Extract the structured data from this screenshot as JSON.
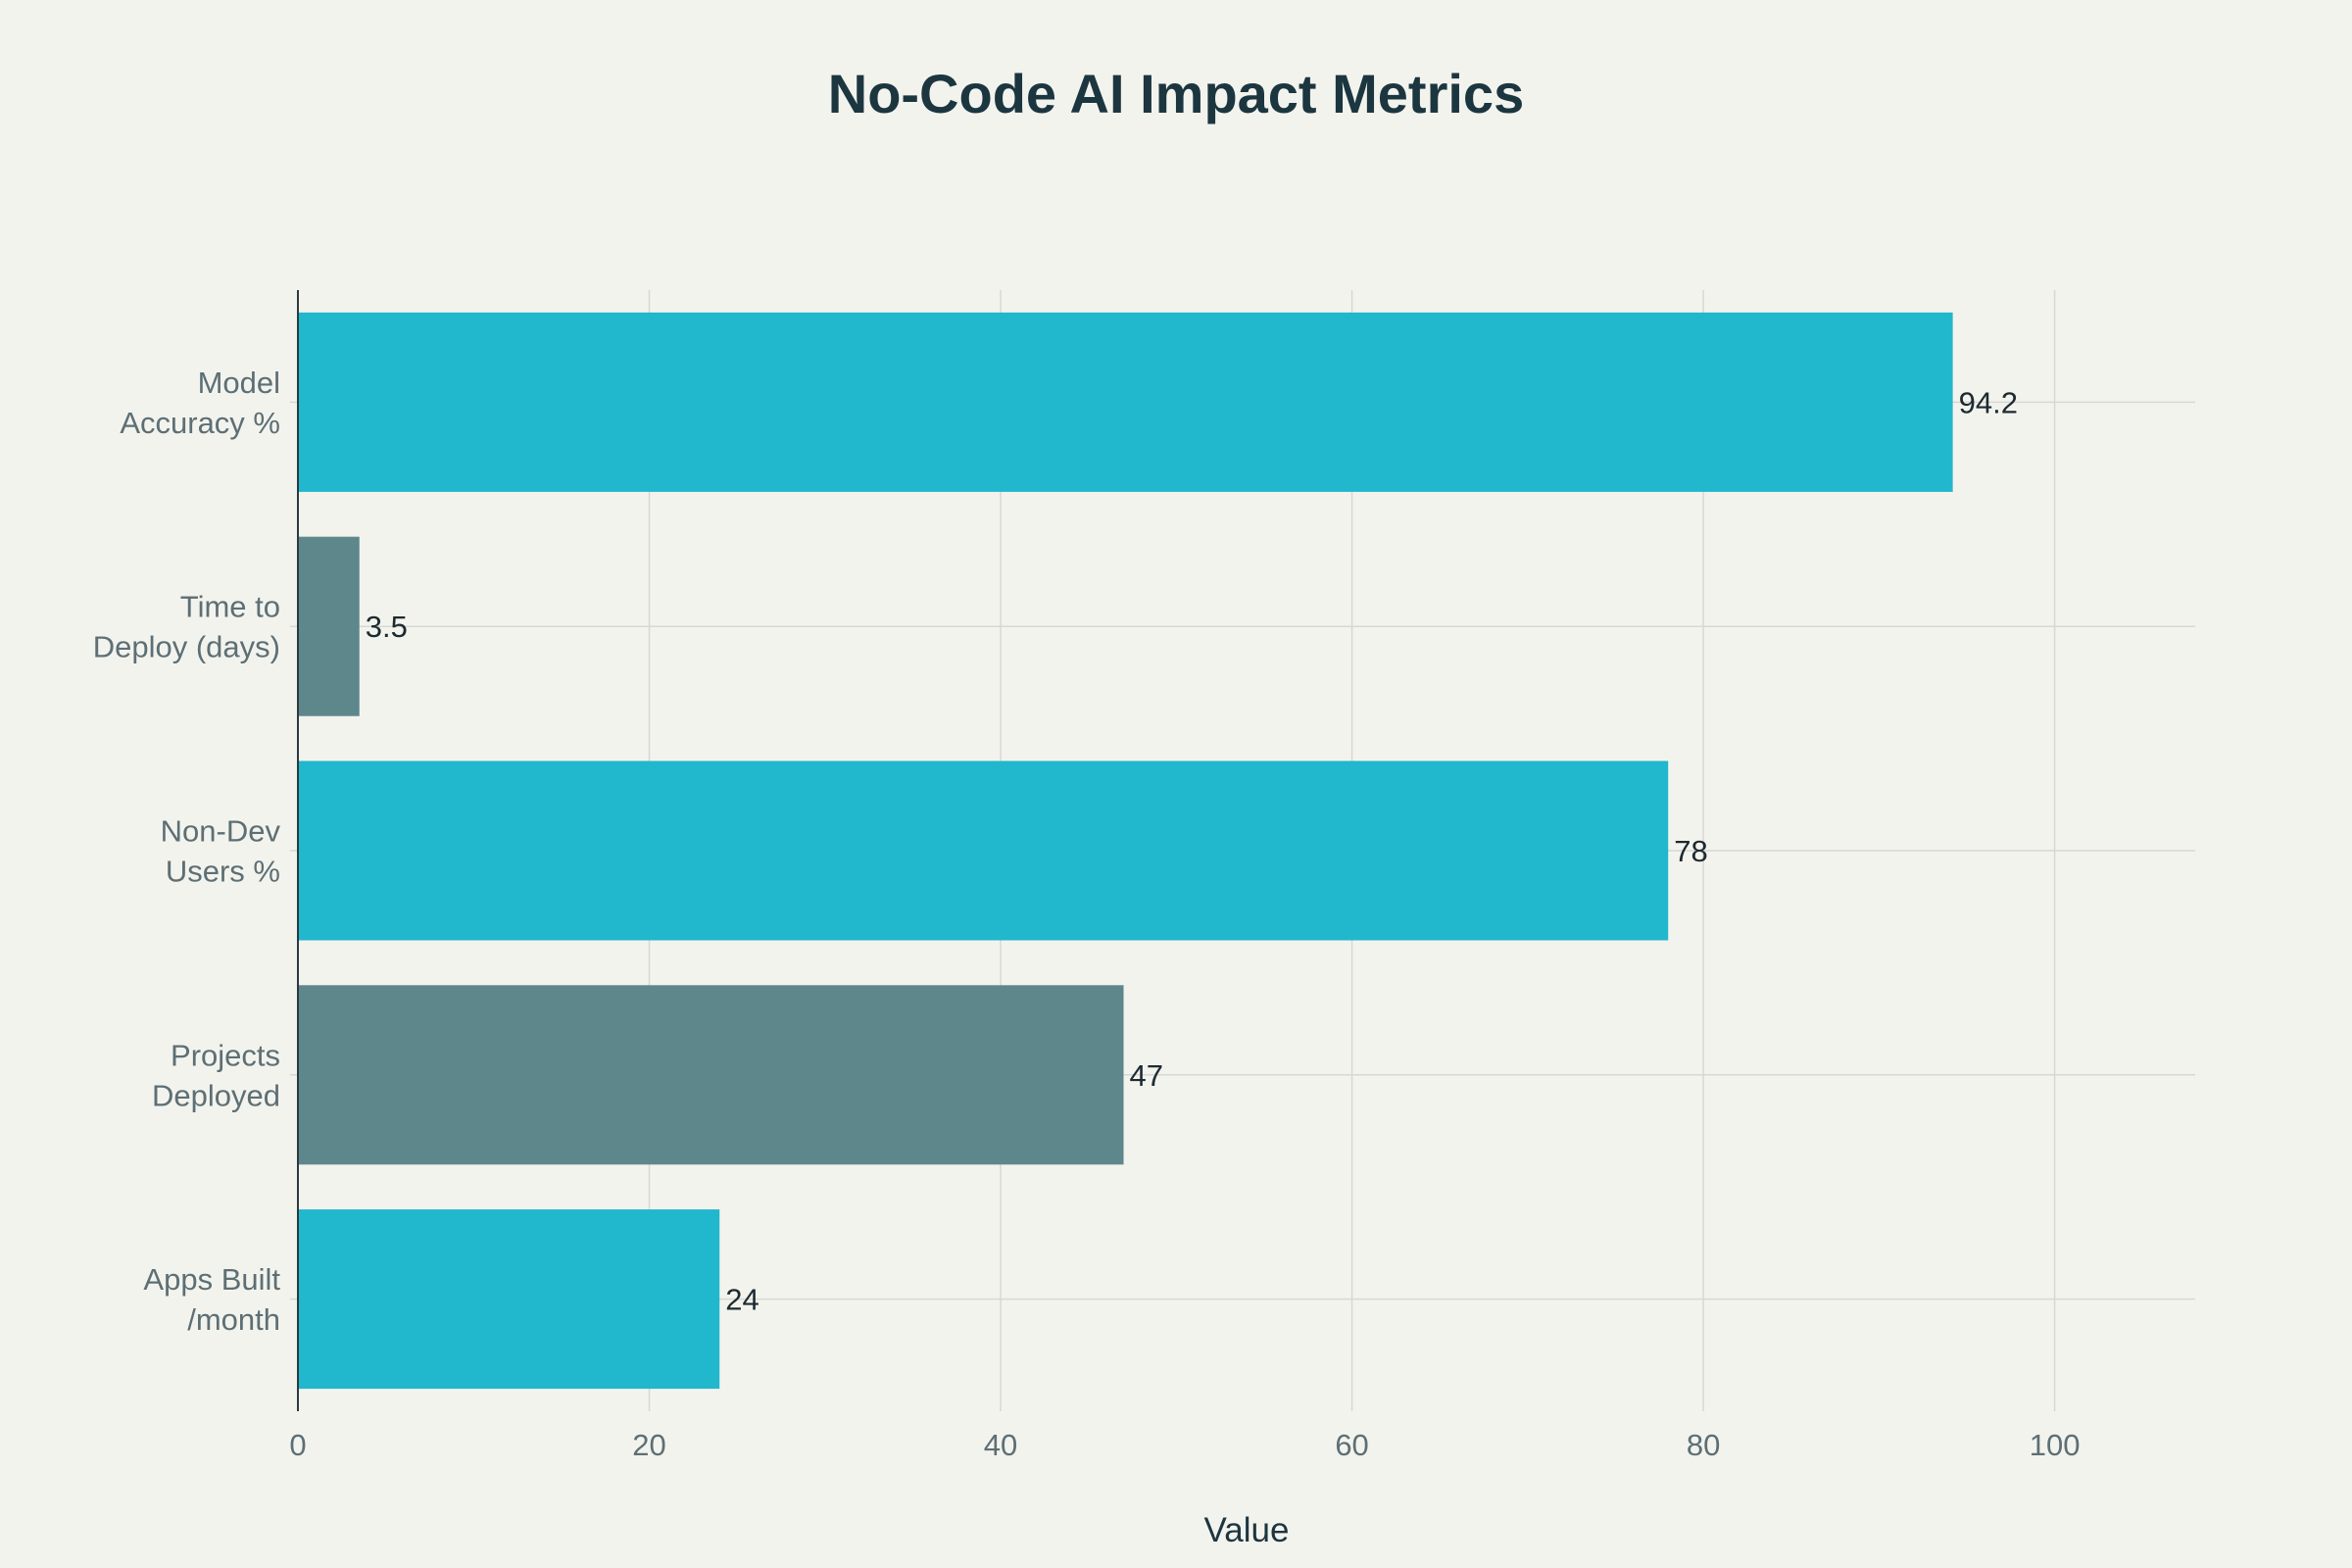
{
  "colors": {
    "background": "#f3f3ee",
    "title": "#1c3640",
    "label": "#5d6f74",
    "accent_teal": "#21b7cc",
    "accent_slate": "#5e878c"
  },
  "chart_data": {
    "type": "bar",
    "orientation": "horizontal",
    "title": "No-Code AI Impact Metrics",
    "xlabel": "Value",
    "ylabel": "",
    "xlim": [
      0,
      108
    ],
    "xticks": [
      0,
      20,
      40,
      60,
      80,
      100
    ],
    "grid": true,
    "categories": [
      [
        "Model",
        "Accuracy %"
      ],
      [
        "Time to",
        "Deploy (days)"
      ],
      [
        "Non-Dev",
        "Users %"
      ],
      [
        "Projects",
        "Deployed"
      ],
      [
        "Apps Built",
        "/month"
      ]
    ],
    "values": [
      94.2,
      3.5,
      78,
      47,
      24
    ],
    "value_labels": [
      "94.2",
      "3.5",
      "78",
      "47",
      "24"
    ],
    "bar_colors": [
      "#21b7cc",
      "#5e878c",
      "#21b7cc",
      "#5e878c",
      "#21b7cc"
    ]
  }
}
